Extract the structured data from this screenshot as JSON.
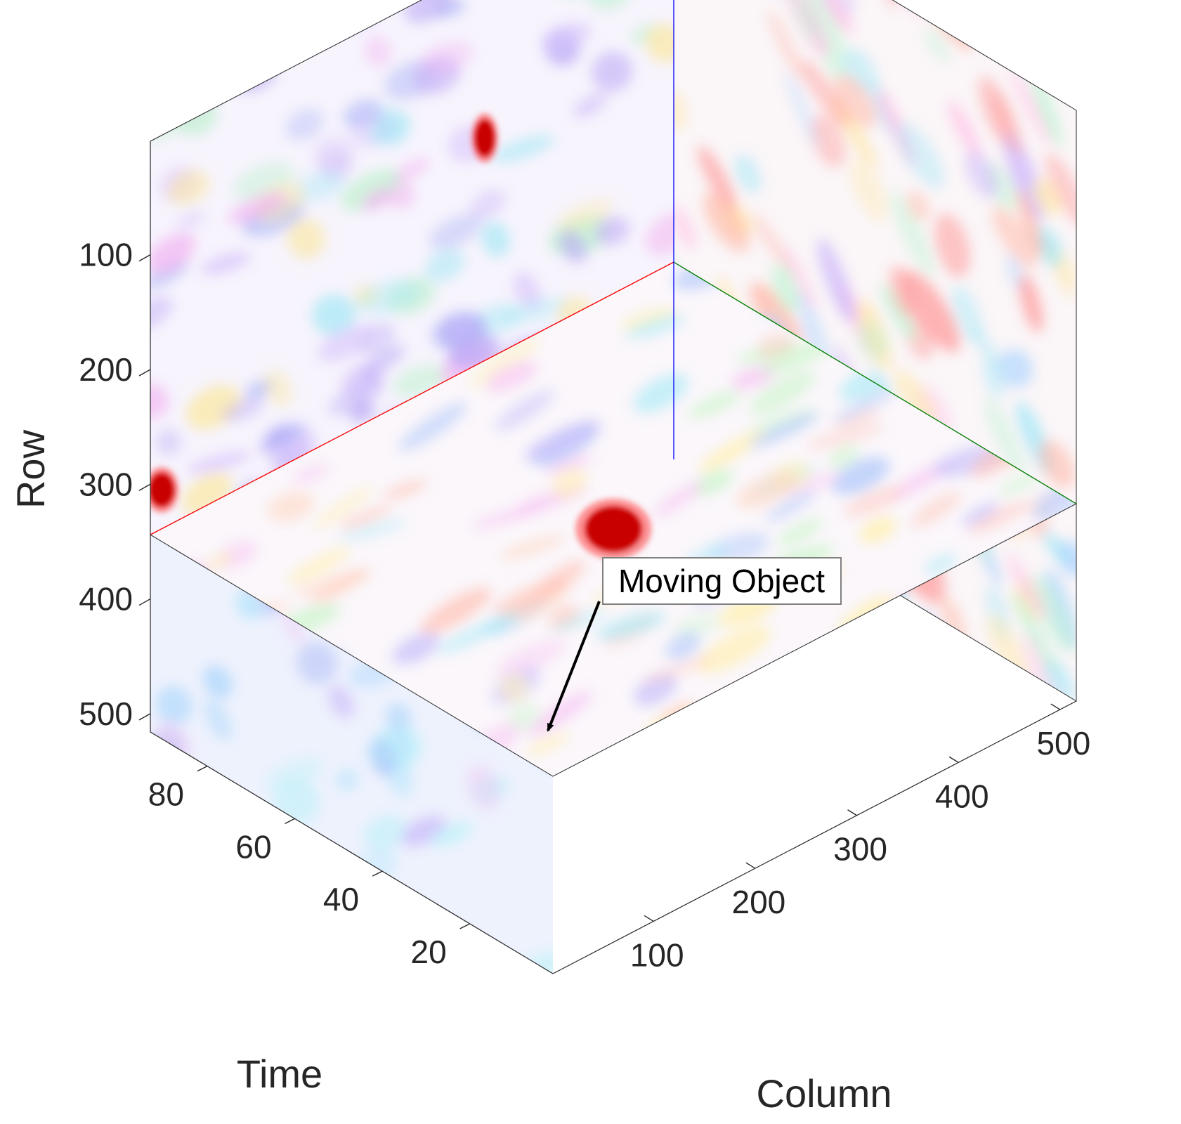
{
  "chart_data": {
    "type": "volume-slices",
    "title": "",
    "axes": {
      "row": {
        "label": "Row",
        "ticks": [
          100,
          200,
          300,
          400,
          500
        ],
        "range": [
          1,
          516
        ],
        "direction": "reversed"
      },
      "column": {
        "label": "Column",
        "ticks": [
          100,
          200,
          300,
          400,
          500
        ],
        "range": [
          1,
          516
        ]
      },
      "time": {
        "label": "Time",
        "ticks": [
          20,
          40,
          60,
          80
        ],
        "range": [
          1,
          93
        ]
      }
    },
    "slices": [
      {
        "plane": "column-row",
        "at_time": 93,
        "edge_color": "#0000ff"
      },
      {
        "plane": "time-row",
        "at_column": 516,
        "edge_color": "#008000"
      },
      {
        "plane": "column-time",
        "at_row": 344,
        "edge_color": "#ff0000"
      }
    ],
    "colormap": "pastel hue (hsv-like), low saturation background",
    "annotation": {
      "text": "Moving Object",
      "arrow_target": {
        "column": 250,
        "time": 45,
        "row": 344
      }
    },
    "highlight_color": "#c80000",
    "grid": false
  }
}
